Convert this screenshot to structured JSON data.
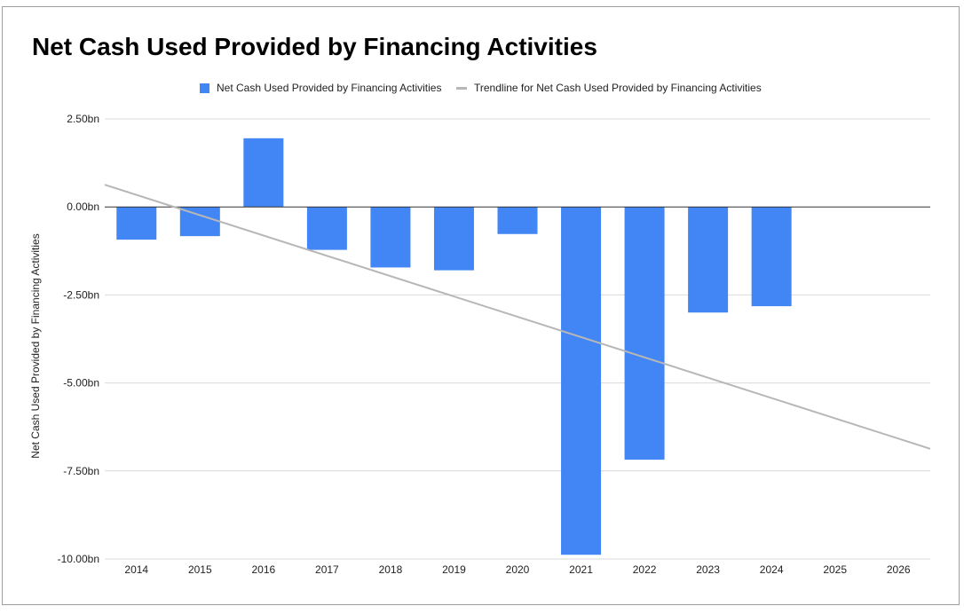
{
  "chart_data": {
    "type": "bar",
    "title": "Net Cash Used Provided by Financing Activities",
    "ylabel": "Net Cash Used Provided by Financing Activities",
    "xlabel": "",
    "categories": [
      "2014",
      "2015",
      "2016",
      "2017",
      "2018",
      "2019",
      "2020",
      "2021",
      "2022",
      "2023",
      "2024",
      "2025",
      "2026"
    ],
    "series": [
      {
        "name": "Net Cash Used Provided by Financing Activities",
        "values": [
          -0.93,
          -0.83,
          1.95,
          -1.22,
          -1.72,
          -1.8,
          -0.77,
          -9.88,
          -7.18,
          -3.0,
          -2.82,
          null,
          null
        ],
        "color": "#4285f4"
      }
    ],
    "trendline": {
      "name": "Trendline for Net Cash Used Provided by Financing Activities",
      "type": "linear",
      "start": 0.63,
      "end": -6.87,
      "color": "#b7b7b7"
    },
    "ylim": [
      -10,
      2.5
    ],
    "yticks": [
      2.5,
      0,
      -2.5,
      -5,
      -7.5,
      -10
    ],
    "ytick_labels": [
      "2.50bn",
      "0.00bn",
      "-2.50bn",
      "-5.00bn",
      "-7.50bn",
      "-10.00bn"
    ],
    "grid": true,
    "legend_position": "top"
  }
}
